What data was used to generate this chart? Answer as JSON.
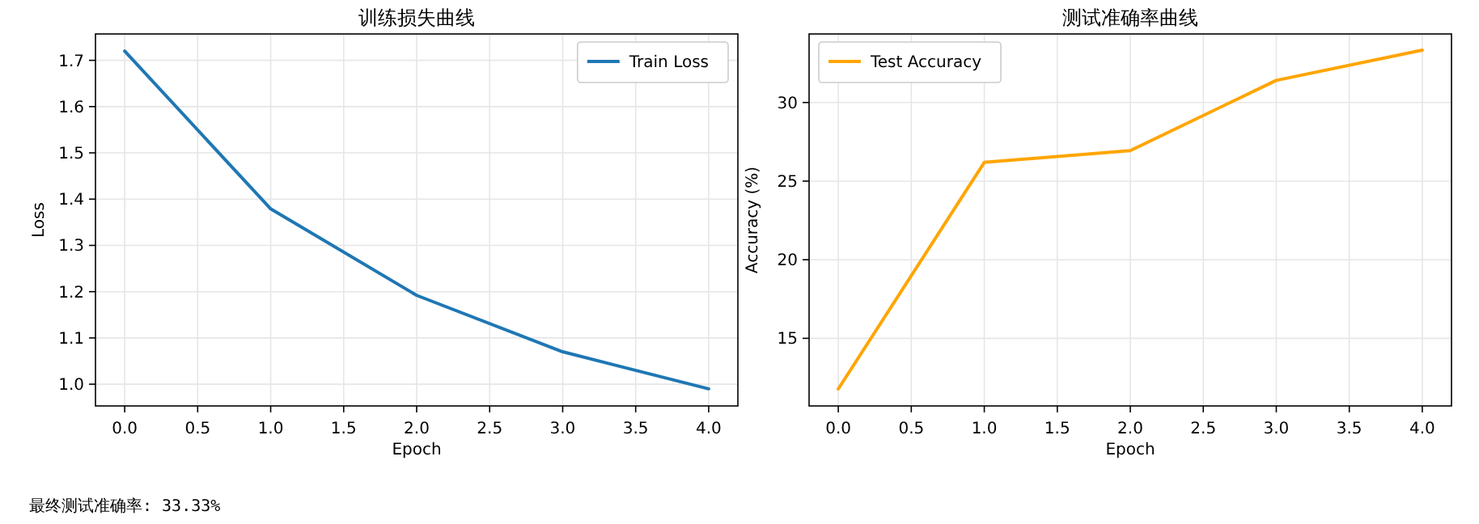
{
  "chart_data": [
    {
      "type": "line",
      "title": "训练损失曲线",
      "xlabel": "Epoch",
      "ylabel": "Loss",
      "x": [
        0,
        1,
        2,
        3,
        4
      ],
      "series": [
        {
          "name": "Train Loss",
          "color": "#1f77b4",
          "values": [
            1.72,
            1.379,
            1.192,
            1.07,
            0.99
          ]
        }
      ],
      "xlim": [
        -0.2,
        4.2
      ],
      "xticks": [
        {
          "value": 0,
          "label": "0.0"
        },
        0.5,
        {
          "value": 1,
          "label": "1.0"
        },
        1.5,
        {
          "value": 2,
          "label": "2.0"
        },
        2.5,
        {
          "value": 3,
          "label": "3.0"
        },
        3.5,
        {
          "value": 4,
          "label": "4.0"
        }
      ],
      "ylim": [
        0.953,
        1.757
      ],
      "yticks": [
        {
          "value": 1,
          "label": "1.0"
        },
        1.1,
        1.2,
        1.3,
        1.4,
        1.5,
        1.6,
        1.7
      ],
      "grid": true,
      "legend": "top right",
      "line_style": "solid",
      "annotations": [
        "最终测试准确率: 33.33%"
      ]
    },
    {
      "type": "line",
      "title": "测试准确率曲线",
      "xlabel": "Epoch",
      "ylabel": "Accuracy (%)",
      "x": [
        0,
        1,
        2,
        3,
        4
      ],
      "series": [
        {
          "name": "Test Accuracy",
          "color": "#ffa500",
          "values": [
            11.78,
            26.19,
            26.94,
            31.41,
            33.33
          ]
        }
      ],
      "xlim": [
        -0.2,
        4.2
      ],
      "xticks": [
        {
          "value": 0,
          "label": "0.0"
        },
        0.5,
        {
          "value": 1,
          "label": "1.0"
        },
        1.5,
        {
          "value": 2,
          "label": "2.0"
        },
        2.5,
        {
          "value": 3,
          "label": "3.0"
        },
        3.5,
        {
          "value": 4,
          "label": "4.0"
        }
      ],
      "ylim": [
        10.7,
        34.36
      ],
      "yticks": [
        15,
        20,
        25,
        30
      ],
      "grid": true,
      "legend": "top left",
      "line_style": "solid"
    }
  ]
}
